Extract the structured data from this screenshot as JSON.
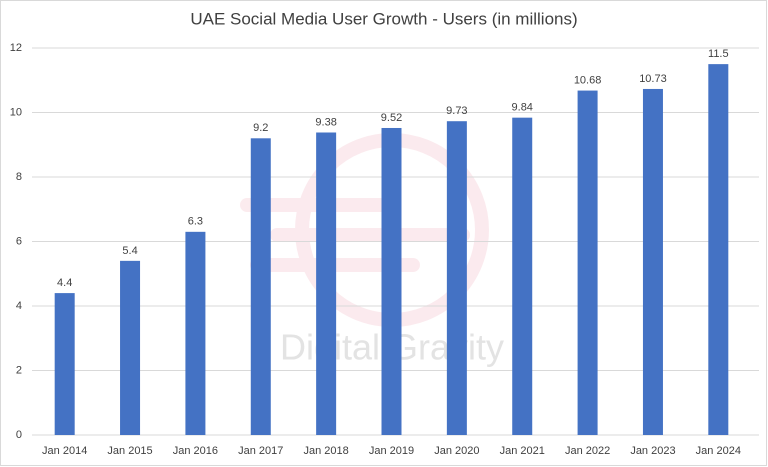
{
  "chart_data": {
    "type": "bar",
    "title": "UAE Social Media User Growth - Users (in millions)",
    "watermark": "Digital Gravity",
    "categories": [
      "Jan 2014",
      "Jan 2015",
      "Jan 2016",
      "Jan 2017",
      "Jan 2018",
      "Jan 2019",
      "Jan 2020",
      "Jan 2021",
      "Jan 2022",
      "Jan 2023",
      "Jan 2024"
    ],
    "values": [
      4.4,
      5.4,
      6.3,
      9.2,
      9.38,
      9.52,
      9.73,
      9.84,
      10.68,
      10.73,
      11.5
    ],
    "color": "#4472c4",
    "ylim": [
      0,
      12
    ],
    "yticks": [
      0,
      2,
      4,
      6,
      8,
      10,
      12
    ],
    "grid": true
  }
}
